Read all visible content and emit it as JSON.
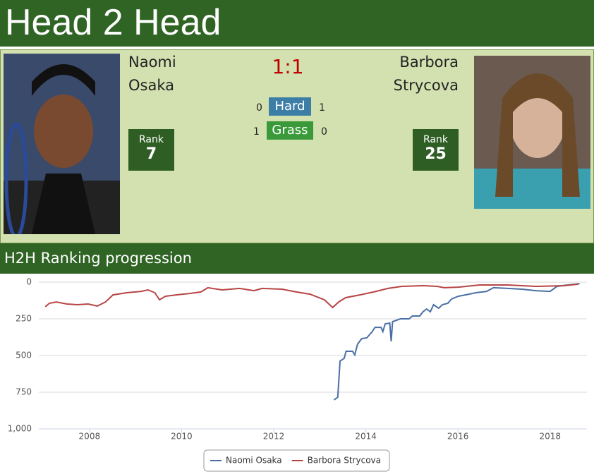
{
  "header": {
    "title": "Head 2 Head"
  },
  "players": [
    {
      "first_name": "Naomi",
      "last_name": "Osaka",
      "rank_label": "Rank",
      "rank": "7"
    },
    {
      "first_name": "Barbora",
      "last_name": "Strycova",
      "rank_label": "Rank",
      "rank": "25"
    }
  ],
  "score": "1:1",
  "surfaces": [
    {
      "name": "Hard",
      "left": "0",
      "right": "1"
    },
    {
      "name": "Grass",
      "left": "1",
      "right": "0"
    }
  ],
  "section_title": "H2H Ranking progression",
  "chart_data": {
    "type": "line",
    "reverse_y": true,
    "grid": true,
    "legend": "bottom",
    "xlim": [
      2006.9,
      2018.8
    ],
    "xticks": [
      2008,
      2010,
      2012,
      2014,
      2016,
      2018
    ],
    "ylim": [
      0,
      1000
    ],
    "yticks": [
      0,
      250,
      500,
      750,
      {
        "value": 1000,
        "label": "1,000"
      }
    ],
    "series": [
      {
        "name": "Naomi Osaka",
        "color": "#4a6fa5",
        "x": [
          2013.31,
          2013.39,
          2013.44,
          2013.53,
          2013.57,
          2013.71,
          2013.76,
          2013.82,
          2013.91,
          2014.02,
          2014.13,
          2014.2,
          2014.33,
          2014.37,
          2014.42,
          2014.52,
          2014.55,
          2014.58,
          2014.75,
          2014.94,
          2015.01,
          2015.17,
          2015.24,
          2015.32,
          2015.4,
          2015.47,
          2015.58,
          2015.66,
          2015.78,
          2015.86,
          2016.01,
          2016.16,
          2016.39,
          2016.62,
          2016.77,
          2017.08,
          2017.39,
          2017.69,
          2018.0,
          2018.15,
          2018.38,
          2018.64
        ],
        "values": [
          803,
          784,
          538,
          519,
          471,
          471,
          495,
          423,
          385,
          380,
          341,
          308,
          308,
          337,
          284,
          279,
          404,
          269,
          250,
          250,
          231,
          231,
          202,
          183,
          202,
          154,
          178,
          154,
          144,
          115,
          96,
          87,
          72,
          63,
          38,
          43,
          48,
          58,
          63,
          29,
          19,
          10
        ]
      },
      {
        "name": "Barbora Strycova",
        "color": "#b84545",
        "x": [
          2007.04,
          2007.13,
          2007.28,
          2007.51,
          2007.74,
          2007.97,
          2008.17,
          2008.35,
          2008.51,
          2008.81,
          2009.12,
          2009.27,
          2009.42,
          2009.52,
          2009.65,
          2009.88,
          2010.19,
          2010.42,
          2010.57,
          2010.88,
          2011.26,
          2011.57,
          2011.75,
          2012.18,
          2012.49,
          2012.79,
          2013.1,
          2013.28,
          2013.41,
          2013.56,
          2013.87,
          2014.17,
          2014.48,
          2014.78,
          2015.24,
          2015.55,
          2015.7,
          2016.01,
          2016.47,
          2017.08,
          2017.69,
          2018.31,
          2018.61
        ],
        "values": [
          168,
          144,
          135,
          149,
          154,
          149,
          163,
          135,
          87,
          72,
          63,
          53,
          72,
          120,
          96,
          87,
          77,
          67,
          38,
          53,
          43,
          58,
          43,
          48,
          67,
          82,
          120,
          173,
          135,
          106,
          87,
          67,
          43,
          29,
          24,
          29,
          38,
          34,
          19,
          19,
          29,
          24,
          14
        ]
      }
    ]
  }
}
